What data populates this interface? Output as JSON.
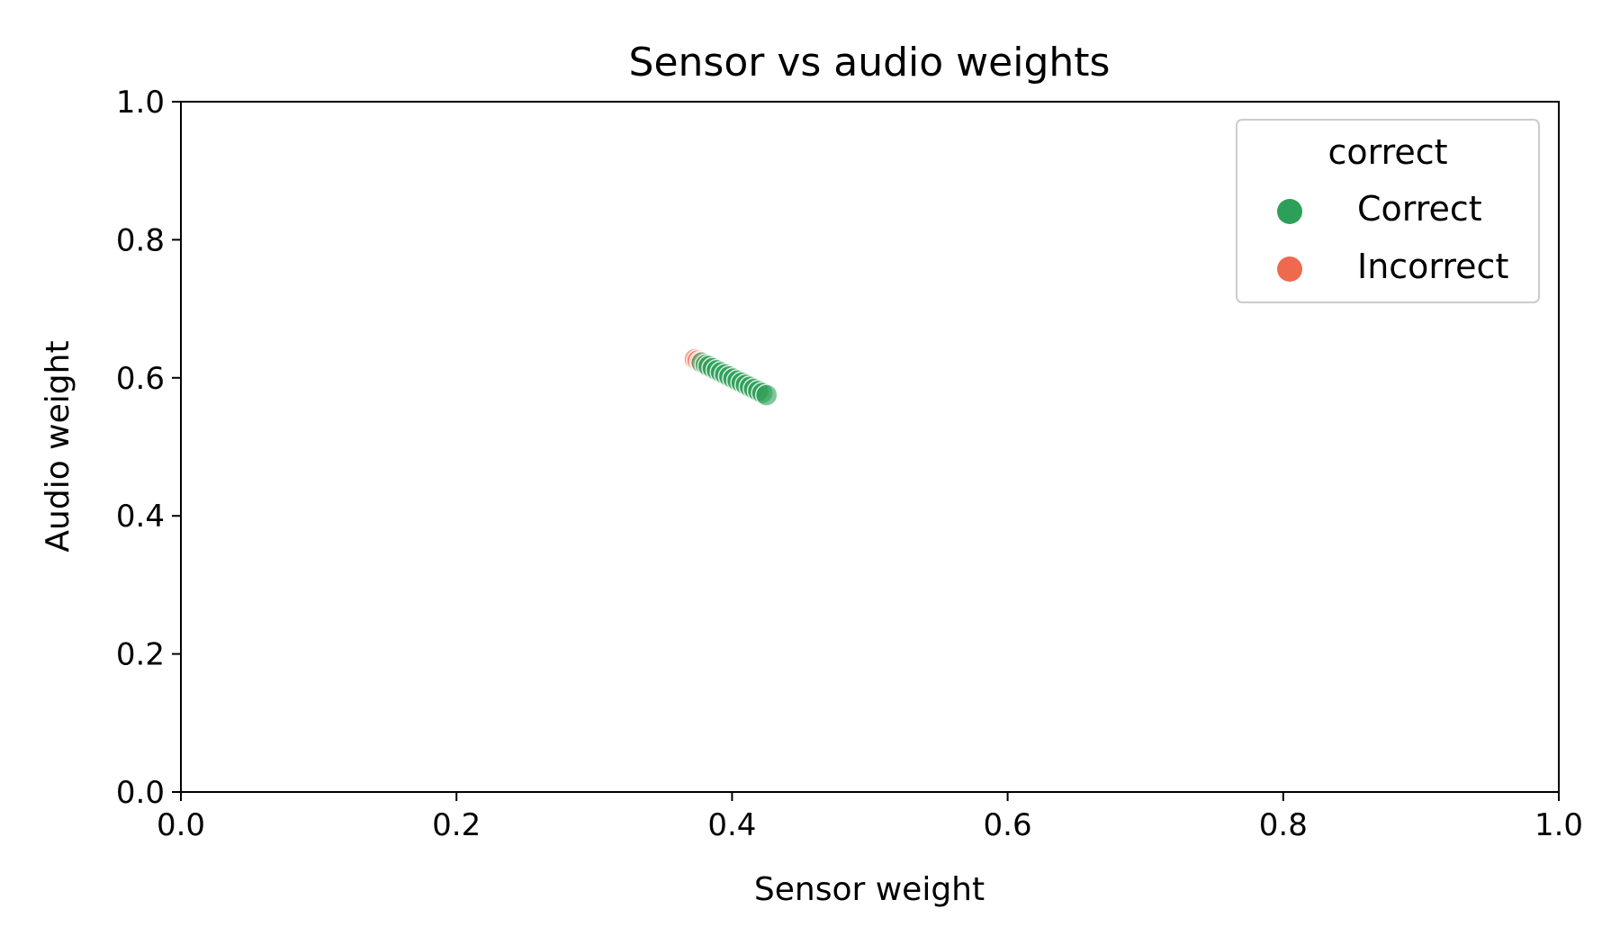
{
  "chart_data": {
    "type": "scatter",
    "title": "Sensor vs audio weights",
    "xlabel": "Sensor weight",
    "ylabel": "Audio weight",
    "xlim": [
      0.0,
      1.0
    ],
    "ylim": [
      0.0,
      1.0
    ],
    "xticks": [
      "0.0",
      "0.2",
      "0.4",
      "0.6",
      "0.8",
      "1.0"
    ],
    "yticks": [
      "0.0",
      "0.2",
      "0.4",
      "0.6",
      "0.8",
      "1.0"
    ],
    "grid": false,
    "legend": {
      "title": "correct",
      "placement": "top-right",
      "entries": [
        "Correct",
        "Incorrect"
      ]
    },
    "series": [
      {
        "name": "Correct",
        "color": "#2ca058",
        "points": [
          [
            0.378,
            0.622
          ],
          [
            0.381,
            0.619
          ],
          [
            0.383,
            0.617
          ],
          [
            0.386,
            0.614
          ],
          [
            0.389,
            0.611
          ],
          [
            0.392,
            0.608
          ],
          [
            0.395,
            0.605
          ],
          [
            0.398,
            0.602
          ],
          [
            0.401,
            0.599
          ],
          [
            0.404,
            0.596
          ],
          [
            0.407,
            0.593
          ],
          [
            0.41,
            0.59
          ],
          [
            0.413,
            0.587
          ],
          [
            0.416,
            0.584
          ],
          [
            0.419,
            0.581
          ],
          [
            0.422,
            0.578
          ],
          [
            0.425,
            0.575
          ]
        ]
      },
      {
        "name": "Incorrect",
        "color": "#ee6a4e",
        "points": [
          [
            0.373,
            0.627
          ],
          [
            0.375,
            0.625
          ],
          [
            0.377,
            0.623
          ],
          [
            0.38,
            0.62
          ],
          [
            0.402,
            0.598
          ],
          [
            0.406,
            0.594
          ],
          [
            0.409,
            0.591
          ],
          [
            0.412,
            0.588
          ],
          [
            0.415,
            0.585
          ],
          [
            0.418,
            0.582
          ],
          [
            0.42,
            0.58
          ]
        ]
      }
    ]
  }
}
